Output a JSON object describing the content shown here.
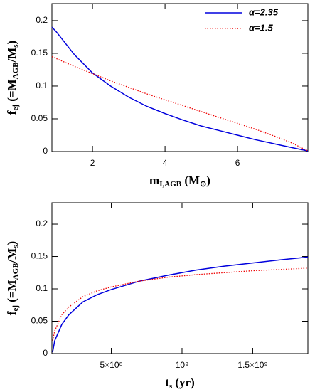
{
  "chart_data": [
    {
      "type": "line",
      "xlabel": [
        "m",
        "I,AGB",
        " (M",
        "⊙",
        ")"
      ],
      "ylabel": [
        "f",
        "ej",
        " (=M",
        "AGB",
        "/M",
        "s",
        ")"
      ],
      "x": [
        0.88,
        1,
        1.5,
        2,
        2.5,
        3,
        3.5,
        4,
        4.5,
        5,
        5.5,
        6,
        6.5,
        7,
        7.5,
        7.94
      ],
      "series": [
        {
          "name": "α=2.35",
          "color": "#0000dd",
          "dash": "solid",
          "values": [
            0.19,
            0.183,
            0.148,
            0.12,
            0.1,
            0.083,
            0.069,
            0.058,
            0.048,
            0.039,
            0.032,
            0.025,
            0.018,
            0.012,
            0.006,
            0.001
          ]
        },
        {
          "name": "α=1.5",
          "color": "#ee0000",
          "dash": "dotted",
          "values": [
            0.145,
            0.142,
            0.13,
            0.119,
            0.108,
            0.098,
            0.088,
            0.079,
            0.07,
            0.061,
            0.052,
            0.043,
            0.034,
            0.024,
            0.013,
            0.001
          ]
        }
      ],
      "xlim": [
        0.88,
        7.94
      ],
      "xticks": [
        2,
        4,
        6
      ],
      "ylim": [
        0,
        0.226
      ],
      "yticks": [
        0,
        0.05,
        0.1,
        0.15,
        0.2
      ],
      "legend": "upper right"
    },
    {
      "type": "line",
      "xlabel": [
        "t",
        "s",
        " (yr)"
      ],
      "ylabel": [
        "f",
        "ej",
        " (=M",
        "AGB",
        "/M",
        "s",
        ")"
      ],
      "x": [
        85000000,
        100000000,
        150000000,
        200000000,
        300000000,
        400000000,
        500000000,
        700000000,
        900000000,
        1100000000,
        1300000000,
        1500000000,
        1700000000,
        1890000000
      ],
      "series": [
        {
          "color": "#0000dd",
          "dash": "solid",
          "values": [
            0.002,
            0.02,
            0.045,
            0.06,
            0.08,
            0.091,
            0.099,
            0.112,
            0.121,
            0.129,
            0.135,
            0.14,
            0.145,
            0.149
          ]
        },
        {
          "color": "#ee0000",
          "dash": "dotted",
          "values": [
            0.02,
            0.035,
            0.06,
            0.072,
            0.088,
            0.097,
            0.103,
            0.112,
            0.118,
            0.122,
            0.125,
            0.128,
            0.13,
            0.132
          ]
        }
      ],
      "xlim": [
        80000000,
        1890000000
      ],
      "xticks": [
        {
          "value": 500000000,
          "label": "5×10⁸"
        },
        {
          "value": 1000000000,
          "label": "10⁹"
        },
        {
          "value": 1500000000,
          "label": "1.5×10⁹"
        }
      ],
      "ylim": [
        0,
        0.233
      ],
      "yticks": [
        0,
        0.05,
        0.1,
        0.15,
        0.2
      ]
    }
  ]
}
